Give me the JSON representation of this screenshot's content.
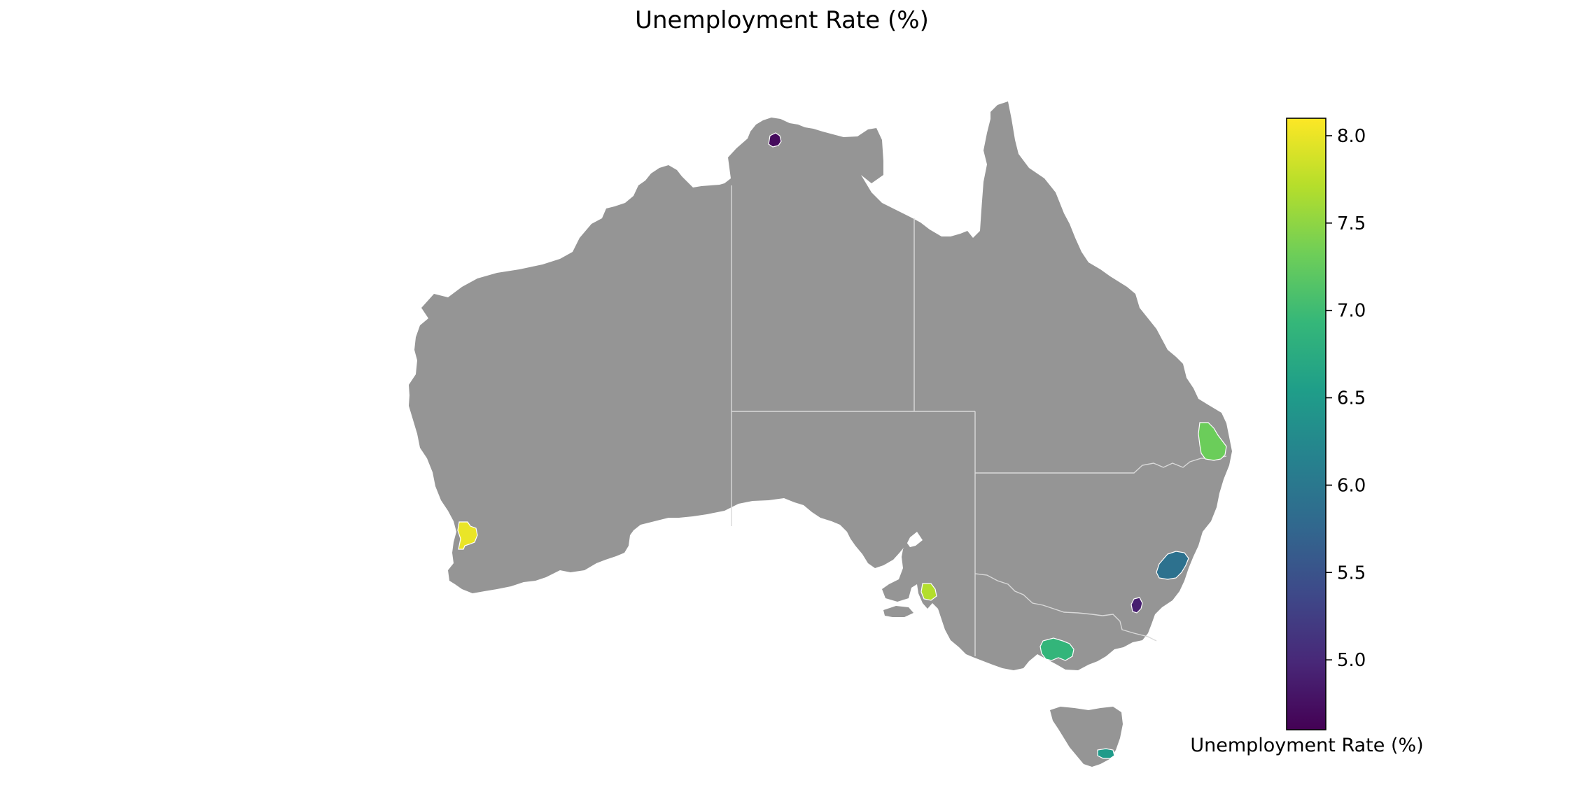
{
  "chart_data": {
    "type": "choropleth",
    "title": "Unemployment Rate (%)",
    "colorbar": {
      "label": "Unemployment Rate (%)",
      "range": [
        4.6,
        8.1
      ],
      "ticks": [
        5.0,
        5.5,
        6.0,
        6.5,
        7.0,
        7.5,
        8.0
      ],
      "tick_labels": [
        "5.0",
        "5.5",
        "6.0",
        "6.5",
        "7.0",
        "7.5",
        "8.0"
      ],
      "colormap": "viridis",
      "colormap_stops": [
        "#440154",
        "#482878",
        "#3e4989",
        "#31688e",
        "#26828e",
        "#1f9e89",
        "#35b779",
        "#6ece58",
        "#b5de2b",
        "#fde725"
      ]
    },
    "no_data_color": "#959595",
    "regions": [
      {
        "id": "perth",
        "value": 8.0
      },
      {
        "id": "adelaide",
        "value": 7.7
      },
      {
        "id": "brisbane",
        "value": 7.3
      },
      {
        "id": "melbourne",
        "value": 6.9
      },
      {
        "id": "hobart",
        "value": 6.5
      },
      {
        "id": "sydney",
        "value": 5.9
      },
      {
        "id": "canberra",
        "value": 4.9
      },
      {
        "id": "darwin",
        "value": 4.7
      }
    ]
  }
}
